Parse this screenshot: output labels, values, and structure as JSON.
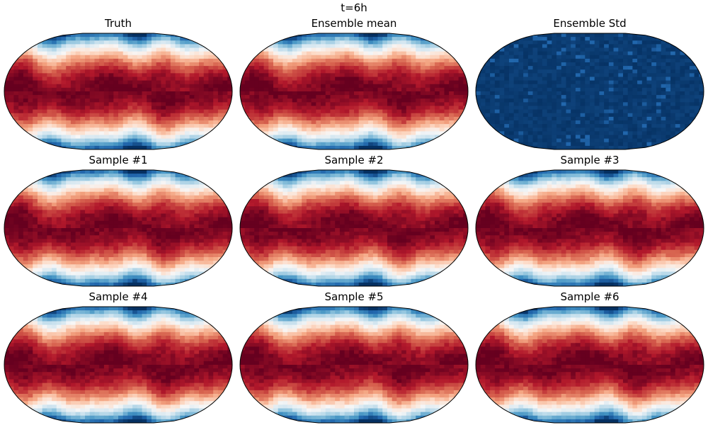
{
  "figure": {
    "title": "t=6h"
  },
  "panels": [
    {
      "title": "Truth",
      "field": "temperature",
      "shift": 0
    },
    {
      "title": "Ensemble mean",
      "field": "temperature",
      "shift": 1
    },
    {
      "title": "Ensemble Std",
      "field": "std",
      "shift": 2
    },
    {
      "title": "Sample #1",
      "field": "temperature",
      "shift": 3
    },
    {
      "title": "Sample #2",
      "field": "temperature",
      "shift": 4
    },
    {
      "title": "Sample #3",
      "field": "temperature",
      "shift": 5
    },
    {
      "title": "Sample #4",
      "field": "temperature",
      "shift": 6
    },
    {
      "title": "Sample #5",
      "field": "temperature",
      "shift": 7
    },
    {
      "title": "Sample #6",
      "field": "temperature",
      "shift": 8
    }
  ],
  "colormap": {
    "name": "RdBu_r",
    "stops": [
      "#053061",
      "#2166ac",
      "#4393c3",
      "#92c5de",
      "#d1e5f0",
      "#f7f7f7",
      "#fddbc7",
      "#f4a582",
      "#d6604d",
      "#b2182b",
      "#67001f"
    ]
  }
}
